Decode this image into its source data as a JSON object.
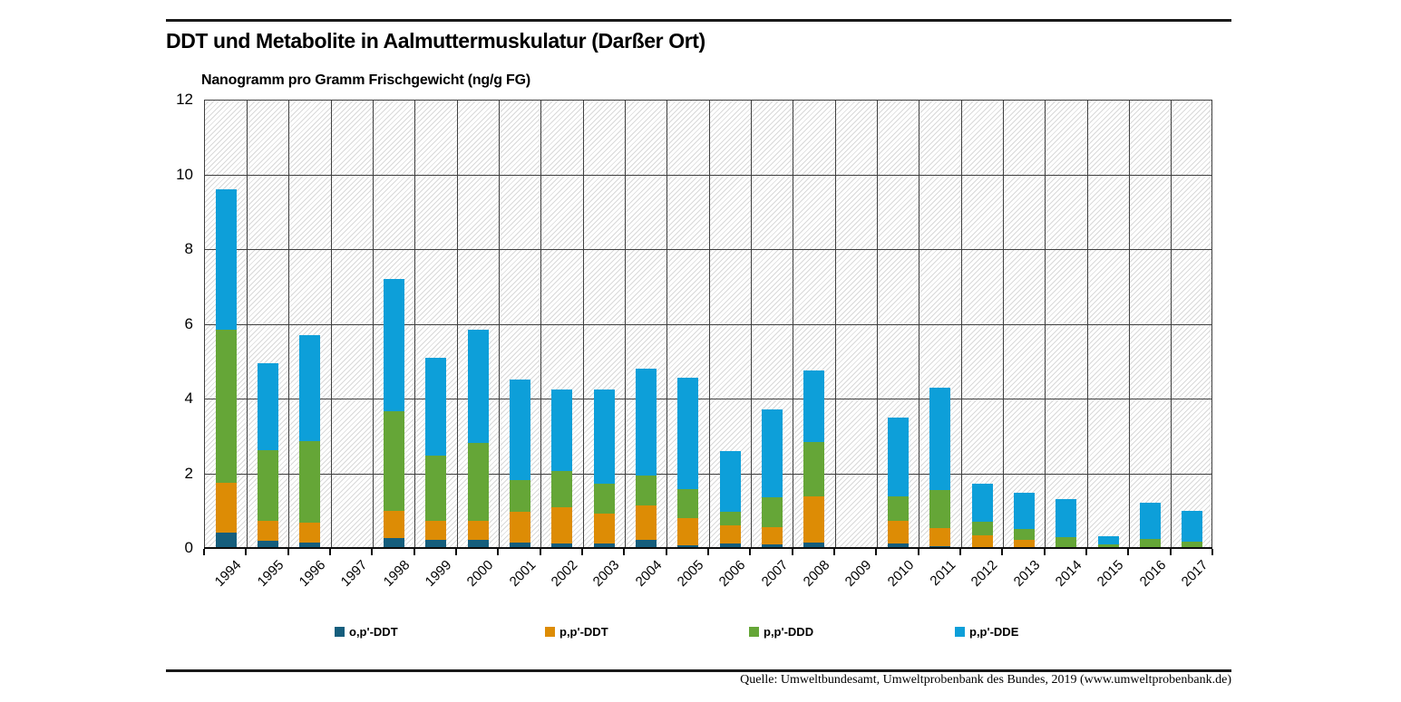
{
  "page": {
    "title": "DDT und Metabolite in Aalmuttermuskulatur (Darßer Ort)",
    "source": "Quelle: Umweltbundesamt, Umweltprobenbank des Bundes, 2019 (www.umweltprobenbank.de)"
  },
  "chart_data": {
    "type": "bar",
    "stacked": true,
    "title": "DDT und Metabolite in Aalmuttermuskulatur (Darßer Ort)",
    "y_axis_title": "Nanogramm pro Gramm Frischgewicht (ng/g FG)",
    "xlabel": "",
    "ylabel": "Nanogramm pro Gramm Frischgewicht (ng/g FG)",
    "ylim": [
      0,
      12
    ],
    "yticks": [
      0,
      2,
      4,
      6,
      8,
      10,
      12
    ],
    "grid": true,
    "background_hatch": "diagonal",
    "legend_position": "bottom",
    "no_data_years": [
      "1997",
      "2009"
    ],
    "categories": [
      "1994",
      "1995",
      "1996",
      "1997",
      "1998",
      "1999",
      "2000",
      "2001",
      "2002",
      "2003",
      "2004",
      "2005",
      "2006",
      "2007",
      "2008",
      "2009",
      "2010",
      "2011",
      "2012",
      "2013",
      "2014",
      "2015",
      "2016",
      "2017"
    ],
    "series": [
      {
        "name": "o,p'-DDT",
        "color": "#155e7d",
        "values": [
          0.42,
          0.19,
          0.15,
          0,
          0.27,
          0.23,
          0.21,
          0.14,
          0.11,
          0.12,
          0.23,
          0.08,
          0.12,
          0.09,
          0.14,
          0,
          0.12,
          0.06,
          0.03,
          0.03,
          0.01,
          0,
          0.01,
          0
        ]
      },
      {
        "name": "p,p'-DDT",
        "color": "#dd8c05",
        "values": [
          1.33,
          0.53,
          0.54,
          0,
          0.72,
          0.5,
          0.51,
          0.82,
          0.99,
          0.8,
          0.92,
          0.73,
          0.49,
          0.48,
          1.24,
          0,
          0.6,
          0.47,
          0.3,
          0.19,
          0.02,
          0,
          0.01,
          0.02
        ]
      },
      {
        "name": "p,p'-DDD",
        "color": "#65a637",
        "values": [
          4.1,
          1.89,
          2.16,
          0,
          2.68,
          1.74,
          2.1,
          0.85,
          0.95,
          0.81,
          0.78,
          0.77,
          0.37,
          0.79,
          1.45,
          0,
          0.66,
          1.01,
          0.38,
          0.28,
          0.25,
          0.09,
          0.23,
          0.15
        ]
      },
      {
        "name": "p,p'-DDE",
        "color": "#0d9fd9",
        "values": [
          3.75,
          2.34,
          2.85,
          0,
          3.53,
          2.63,
          3.03,
          2.69,
          2.2,
          2.52,
          2.87,
          2.97,
          1.62,
          2.34,
          1.92,
          0,
          2.12,
          2.76,
          1.0,
          0.98,
          1.04,
          0.22,
          0.96,
          0.83
        ]
      }
    ],
    "totals": [
      9.6,
      4.95,
      5.7,
      null,
      7.2,
      5.1,
      5.85,
      4.5,
      4.25,
      4.25,
      4.8,
      4.55,
      2.6,
      3.7,
      4.75,
      null,
      3.5,
      4.3,
      1.71,
      1.48,
      1.32,
      0.31,
      1.21,
      1.0
    ]
  }
}
